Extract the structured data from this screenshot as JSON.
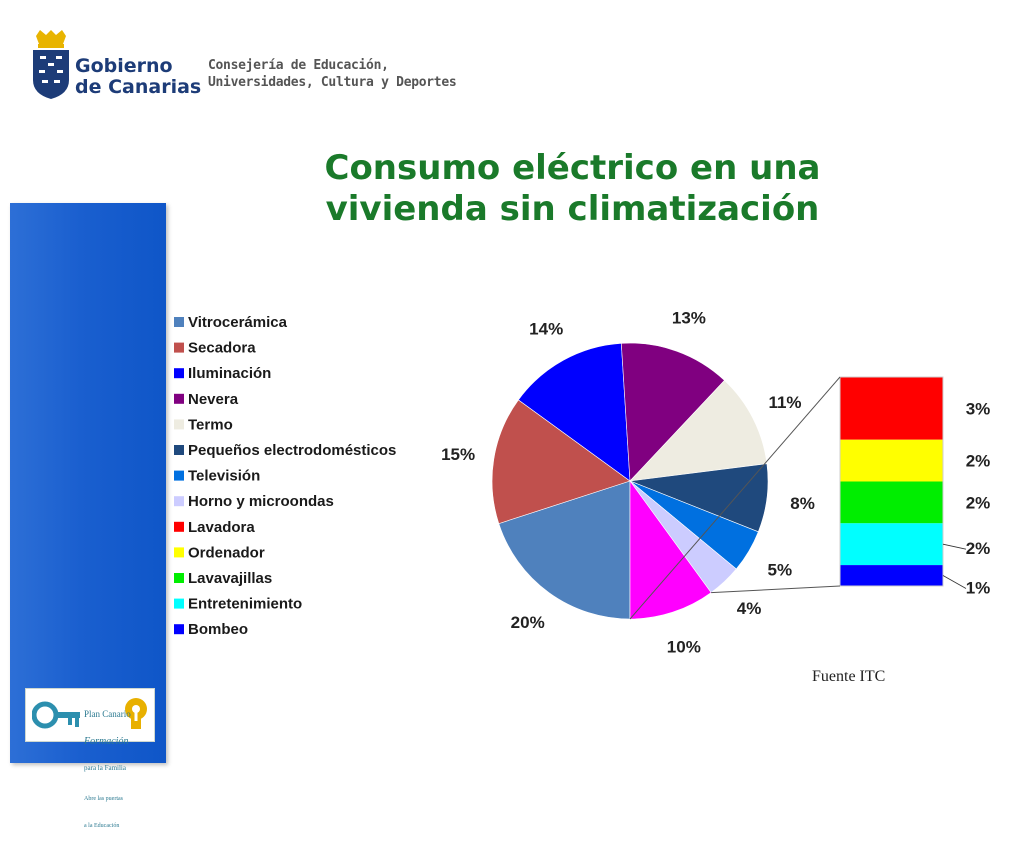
{
  "header": {
    "gov_name_line1": "Gobierno",
    "gov_name_line2": "de Canarias",
    "department_line1": "Consejería de Educación,",
    "department_line2": "Universidades, Cultura y Deportes"
  },
  "plan_logo": {
    "line1": "Plan Canario",
    "line2": "Formación",
    "line3": "para la Familia",
    "line4": "Abre las puertas",
    "line5": "a la Educación"
  },
  "source": "Fuente ITC",
  "colors": {
    "title": "#1a7a2a",
    "side_bar": "#1a5fcf"
  },
  "chart_data": {
    "type": "pie",
    "title": "Consumo eléctrico en una vivienda sin climatización",
    "legend_position": "left",
    "slices": [
      {
        "name": "Vitrocerámica",
        "value": 20,
        "label": "20%",
        "color": "#4f81bd"
      },
      {
        "name": "Secadora",
        "value": 15,
        "label": "15%",
        "color": "#c0504d"
      },
      {
        "name": "Iluminación",
        "value": 14,
        "label": "14%",
        "color": "#0000ff"
      },
      {
        "name": "Nevera",
        "value": 13,
        "label": "13%",
        "color": "#800080"
      },
      {
        "name": "Termo",
        "value": 11,
        "label": "11%",
        "color": "#eeece1"
      },
      {
        "name": "Pequeños electrodomésticos",
        "value": 8,
        "label": "8%",
        "color": "#1f497d"
      },
      {
        "name": "Televisión",
        "value": 5,
        "label": "5%",
        "color": "#0070e0"
      },
      {
        "name": "Horno y microondas",
        "value": 4,
        "label": "4%",
        "color": "#ccccff"
      },
      {
        "name": "Lavadora",
        "value": 3,
        "label": "3%",
        "color": "#ff0000"
      },
      {
        "name": "Ordenador",
        "value": 2,
        "label": "2%",
        "color": "#ffff00"
      },
      {
        "name": "Lavavajillas",
        "value": 2,
        "label": "2%",
        "color": "#00ee00"
      },
      {
        "name": "Entretenimiento",
        "value": 2,
        "label": "2%",
        "color": "#00ffff"
      },
      {
        "name": "Bombeo",
        "value": 1,
        "label": "1%",
        "color": "#0000ff"
      }
    ],
    "grouped_slice": {
      "label": "10%",
      "value": 10,
      "color": "#ff00ff",
      "breakdown": [
        "Lavadora",
        "Ordenador",
        "Lavavajillas",
        "Entretenimiento",
        "Bombeo"
      ]
    }
  }
}
